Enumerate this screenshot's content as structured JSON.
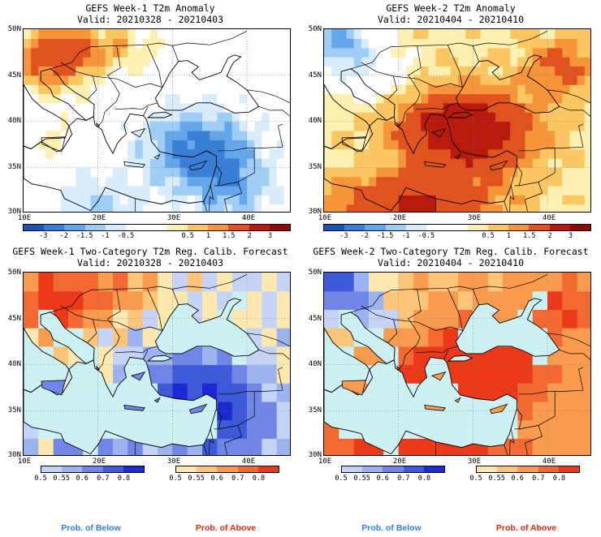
{
  "colors": {
    "ocean": "#cdf0f3",
    "anom": [
      "#1c55b5",
      "#3a7fd6",
      "#64a6ea",
      "#a0cdf6",
      "#d8ecfc",
      "#ffffff",
      "#ffffff",
      "#fdf0b0",
      "#fcc763",
      "#f6953a",
      "#e0521e",
      "#b81a0e",
      "#8c0a06"
    ],
    "below": [
      "#c5d3f7",
      "#9cb3f0",
      "#6f86e6",
      "#3f5ad8",
      "#1a2ad0"
    ],
    "above": [
      "#fde8b0",
      "#fcc57a",
      "#f99b4e",
      "#f26a32",
      "#ea3a1a"
    ],
    "caption_below": "#2f7fe0",
    "caption_above": "#e22612"
  },
  "axes": {
    "lat_labels": [
      "50N",
      "45N",
      "40N",
      "35N",
      "30N"
    ],
    "lon_labels": [
      "10E",
      "20E",
      "30E",
      "40E"
    ]
  },
  "anom_colorbar": {
    "labels": [
      "-3",
      "-2",
      "-1.5",
      "-1",
      "-0.5",
      "0.5",
      "1",
      "1.5",
      "2",
      "3"
    ]
  },
  "prob_colorbar": {
    "labels": [
      "0.5",
      "0.55",
      "0.6",
      "0.7",
      "0.8"
    ]
  },
  "panels": [
    {
      "title": "GEFS Week-1 T2m Anomaly",
      "valid": "Valid: 20210328 - 20210403",
      "state": "w1anom"
    },
    {
      "title": "GEFS Week-2 T2m Anomaly",
      "valid": "Valid: 20210404 - 20210410",
      "state": "w2anom"
    },
    {
      "title": "GEFS Week-1 Two-Category T2m Reg. Calib. Forecast",
      "valid": "Valid: 20210328 - 20210403",
      "state": "w1prob"
    },
    {
      "title": "GEFS Week-2 Two-Category T2m Reg. Calib. Forecast",
      "valid": "Valid: 20210404 - 20210410",
      "state": "w2prob"
    }
  ],
  "captions": {
    "below": "Prob. of Below",
    "above": "Prob. of Above"
  }
}
